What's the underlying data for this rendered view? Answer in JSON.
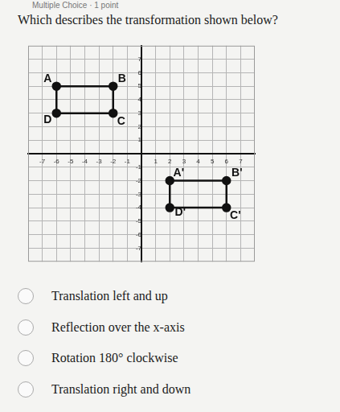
{
  "header": "Multiple Choice · 1 point",
  "question": "Which describes the transformation shown below?",
  "chart_data": {
    "type": "scatter",
    "xlim": [
      -8,
      8
    ],
    "ylim": [
      -8,
      8
    ],
    "xticks": [
      -7,
      -6,
      -5,
      -4,
      -3,
      -2,
      -1,
      1,
      2,
      3,
      4,
      5,
      6,
      7
    ],
    "yticks": [
      -7,
      -6,
      -5,
      -4,
      -3,
      -2,
      -1,
      1,
      2,
      3,
      4,
      5,
      6,
      7
    ],
    "grid": true,
    "series": [
      {
        "x": [
          -6,
          -2,
          -2,
          -6
        ],
        "y": [
          5,
          5,
          3,
          3
        ],
        "point_labels": [
          "A",
          "B",
          "C",
          "D"
        ],
        "color": "#111111",
        "marker": "circle",
        "line_style": "solid"
      },
      {
        "x": [
          2,
          6,
          6,
          2
        ],
        "y": [
          -2,
          -2,
          -4,
          -4
        ],
        "point_labels": [
          "A'",
          "B'",
          "C'",
          "D'"
        ],
        "color": "#111111",
        "marker": "circle",
        "line_style": "solid"
      }
    ]
  },
  "choices": [
    "Translation left and up",
    "Reflection over the x-axis",
    "Rotation 180° clockwise",
    "Translation right and down"
  ]
}
